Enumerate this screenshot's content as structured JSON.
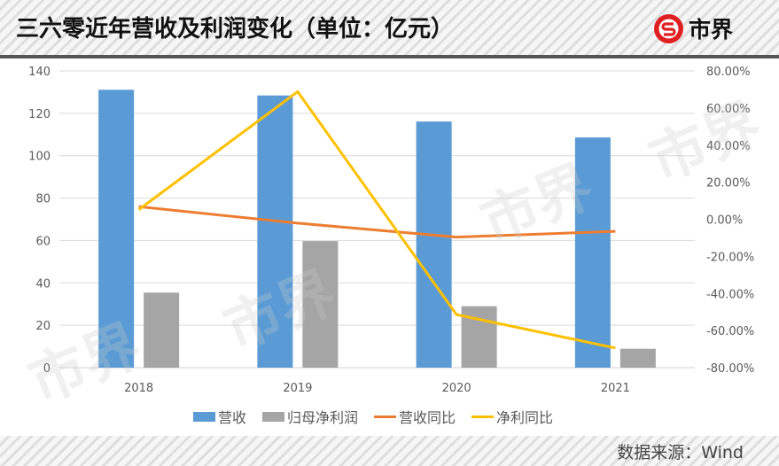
{
  "header": {
    "title": "三六零近年营收及利润变化（单位：亿元）",
    "logo_text": "市界",
    "logo_color": "#e02020"
  },
  "footer": {
    "source": "数据来源：Wind"
  },
  "legend": [
    {
      "label": "营收",
      "type": "bar",
      "color": "#5b9bd5"
    },
    {
      "label": "归母净利润",
      "type": "bar",
      "color": "#a5a5a5"
    },
    {
      "label": "营收同比",
      "type": "line",
      "color": "#ed7d31"
    },
    {
      "label": "净利同比",
      "type": "line",
      "color": "#ffc000"
    }
  ],
  "watermark": "市界",
  "chart_data": {
    "type": "bar",
    "title": "三六零近年营收及利润变化（单位：亿元）",
    "categories": [
      "2018",
      "2019",
      "2020",
      "2021"
    ],
    "left_axis": {
      "ylim": [
        0,
        140
      ],
      "ticks": [
        "0",
        "20",
        "40",
        "60",
        "80",
        "100",
        "120",
        "140"
      ]
    },
    "right_axis": {
      "ylim": [
        -80,
        80
      ],
      "ticks": [
        "-80.00%",
        "-60.00%",
        "-40.00%",
        "-20.00%",
        "0.00%",
        "20.00%",
        "40.00%",
        "60.00%",
        "80.00%"
      ]
    },
    "series": [
      {
        "name": "营收",
        "type": "bar",
        "axis": "left",
        "color": "#5b9bd5",
        "values": [
          131.1,
          128.4,
          116.1,
          108.6
        ]
      },
      {
        "name": "归母净利润",
        "type": "bar",
        "axis": "left",
        "color": "#a5a5a5",
        "values": [
          35.4,
          59.7,
          29.0,
          8.9
        ]
      },
      {
        "name": "营收同比",
        "type": "line",
        "axis": "right",
        "color": "#ed7d31",
        "values": [
          6.8,
          -2.1,
          -9.6,
          -6.5
        ]
      },
      {
        "name": "净利同比",
        "type": "line",
        "axis": "right",
        "color": "#ffc000",
        "values": [
          5.2,
          68.8,
          -51.4,
          -69.4
        ]
      }
    ],
    "xlabel": "",
    "ylabel": "",
    "grid": true,
    "legend_position": "bottom",
    "source": "数据来源：Wind"
  }
}
